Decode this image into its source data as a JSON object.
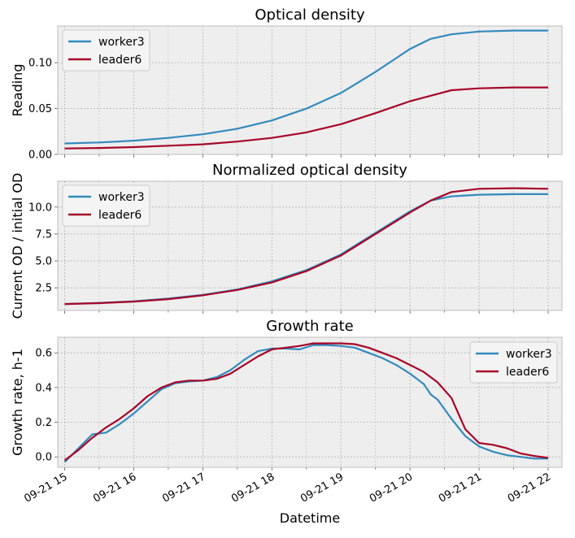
{
  "figure": {
    "xlabel": "Datetime"
  },
  "chart_data": [
    {
      "type": "line",
      "title": "Optical density",
      "ylabel": "Reading",
      "xlim": [
        14.9,
        22.2
      ],
      "ylim": [
        0,
        0.14
      ],
      "yticks": [
        0.0,
        0.05,
        0.1
      ],
      "ytick_labels": [
        "0.00",
        "0.05",
        "0.10"
      ],
      "grid": true,
      "legend": "top-left",
      "series": [
        {
          "name": "worker3",
          "color": "#348abd",
          "x": [
            15,
            15.5,
            16,
            16.5,
            17,
            17.5,
            18,
            18.5,
            19,
            19.5,
            19.8,
            20,
            20.3,
            20.6,
            21,
            21.5,
            22
          ],
          "y": [
            0.012,
            0.013,
            0.015,
            0.018,
            0.022,
            0.028,
            0.037,
            0.05,
            0.067,
            0.09,
            0.105,
            0.115,
            0.126,
            0.131,
            0.134,
            0.135,
            0.135
          ]
        },
        {
          "name": "leader6",
          "color": "#a60628",
          "x": [
            15,
            15.5,
            16,
            16.5,
            17,
            17.5,
            18,
            18.5,
            19,
            19.5,
            20,
            20.3,
            20.6,
            21,
            21.5,
            22
          ],
          "y": [
            0.0065,
            0.007,
            0.008,
            0.0095,
            0.011,
            0.014,
            0.018,
            0.024,
            0.033,
            0.045,
            0.058,
            0.064,
            0.07,
            0.072,
            0.073,
            0.073
          ]
        }
      ]
    },
    {
      "type": "line",
      "title": "Normalized optical density",
      "ylabel": "Current OD / initial OD",
      "xlim": [
        14.9,
        22.2
      ],
      "ylim": [
        0.4,
        12.4
      ],
      "yticks": [
        2.5,
        5.0,
        7.5,
        10.0
      ],
      "ytick_labels": [
        "2.5",
        "5.0",
        "7.5",
        "10.0"
      ],
      "grid": true,
      "legend": "top-left",
      "series": [
        {
          "name": "worker3",
          "color": "#348abd",
          "x": [
            15,
            15.5,
            16,
            16.5,
            17,
            17.5,
            18,
            18.5,
            19,
            19.5,
            20,
            20.3,
            20.6,
            21,
            21.5,
            22
          ],
          "y": [
            1.0,
            1.1,
            1.25,
            1.5,
            1.85,
            2.35,
            3.1,
            4.15,
            5.6,
            7.6,
            9.6,
            10.6,
            11.0,
            11.15,
            11.2,
            11.2
          ]
        },
        {
          "name": "leader6",
          "color": "#a60628",
          "x": [
            15,
            15.5,
            16,
            16.5,
            17,
            17.5,
            18,
            18.5,
            19,
            19.5,
            20,
            20.3,
            20.6,
            21,
            21.5,
            22
          ],
          "y": [
            1.0,
            1.08,
            1.22,
            1.45,
            1.8,
            2.3,
            3.0,
            4.05,
            5.5,
            7.5,
            9.5,
            10.6,
            11.4,
            11.7,
            11.75,
            11.7
          ]
        }
      ]
    },
    {
      "type": "line",
      "title": "Growth rate",
      "ylabel": "Growth rate, h-1",
      "xlim": [
        14.9,
        22.2
      ],
      "ylim": [
        -0.06,
        0.69
      ],
      "yticks": [
        0.0,
        0.2,
        0.4,
        0.6
      ],
      "ytick_labels": [
        "0.0",
        "0.2",
        "0.4",
        "0.6"
      ],
      "grid": true,
      "legend": "top-right",
      "xticks": [
        15,
        16,
        17,
        18,
        19,
        20,
        21,
        22
      ],
      "xtick_labels": [
        "09-21 15",
        "09-21 16",
        "09-21 17",
        "09-21 18",
        "09-21 19",
        "09-21 20",
        "09-21 21",
        "09-21 22"
      ],
      "series": [
        {
          "name": "worker3",
          "color": "#348abd",
          "x": [
            15,
            15.2,
            15.4,
            15.6,
            15.8,
            16,
            16.2,
            16.4,
            16.6,
            16.8,
            17,
            17.2,
            17.4,
            17.6,
            17.8,
            18,
            18.2,
            18.4,
            18.6,
            18.8,
            19,
            19.2,
            19.4,
            19.6,
            19.8,
            20,
            20.2,
            20.3,
            20.4,
            20.6,
            20.8,
            21,
            21.2,
            21.4,
            21.6,
            21.8,
            22
          ],
          "y": [
            -0.03,
            0.05,
            0.13,
            0.14,
            0.19,
            0.25,
            0.32,
            0.39,
            0.425,
            0.435,
            0.44,
            0.46,
            0.5,
            0.56,
            0.61,
            0.625,
            0.625,
            0.62,
            0.645,
            0.645,
            0.64,
            0.63,
            0.6,
            0.57,
            0.53,
            0.48,
            0.42,
            0.36,
            0.33,
            0.22,
            0.12,
            0.06,
            0.03,
            0.01,
            0.0,
            -0.01,
            -0.01
          ]
        },
        {
          "name": "leader6",
          "color": "#a60628",
          "x": [
            15,
            15.2,
            15.4,
            15.6,
            15.8,
            16,
            16.2,
            16.4,
            16.6,
            16.8,
            17,
            17.2,
            17.4,
            17.6,
            17.8,
            18,
            18.2,
            18.4,
            18.6,
            18.8,
            19,
            19.2,
            19.4,
            19.6,
            19.8,
            20,
            20.2,
            20.4,
            20.6,
            20.8,
            21,
            21.2,
            21.4,
            21.6,
            21.8,
            22
          ],
          "y": [
            -0.02,
            0.04,
            0.11,
            0.17,
            0.22,
            0.28,
            0.35,
            0.4,
            0.43,
            0.44,
            0.44,
            0.45,
            0.48,
            0.53,
            0.58,
            0.62,
            0.63,
            0.64,
            0.655,
            0.655,
            0.655,
            0.65,
            0.63,
            0.6,
            0.57,
            0.53,
            0.49,
            0.43,
            0.34,
            0.16,
            0.08,
            0.07,
            0.05,
            0.02,
            0.005,
            -0.005
          ]
        }
      ]
    }
  ]
}
